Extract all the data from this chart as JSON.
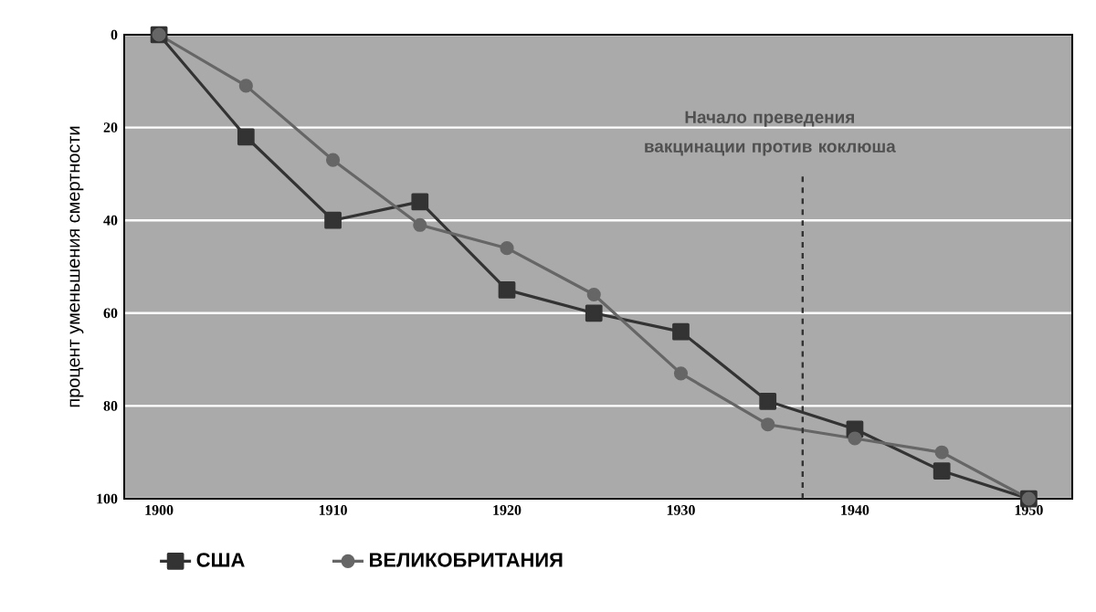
{
  "chart_data": {
    "type": "line",
    "ylabel": "процент уменьшения смертности",
    "x": [
      1900,
      1905,
      1910,
      1915,
      1920,
      1925,
      1930,
      1935,
      1940,
      1945,
      1950
    ],
    "series": [
      {
        "name": "США",
        "color": "#333333",
        "marker": "square",
        "values": [
          0,
          22,
          40,
          36,
          55,
          60,
          64,
          79,
          85,
          94,
          100
        ]
      },
      {
        "name": "ВЕЛИКОБРИТАНИЯ",
        "color": "#666666",
        "marker": "circle",
        "values": [
          0,
          11,
          27,
          41,
          46,
          56,
          73,
          84,
          87,
          90,
          100
        ]
      }
    ],
    "xlim": [
      1898,
      1952.5
    ],
    "xticks": [
      1900,
      1910,
      1920,
      1930,
      1940,
      1950
    ],
    "ylim": [
      100,
      0
    ],
    "yticks": [
      0,
      20,
      40,
      60,
      80,
      100
    ],
    "grid": "y",
    "legend": "bottom",
    "line_style": "solid",
    "ref_lines": [
      {
        "axis": "x",
        "value": 1937,
        "label": "Начало преведения вакцинации против коклюша",
        "color": "#333333",
        "line_style": "dashed"
      }
    ]
  }
}
